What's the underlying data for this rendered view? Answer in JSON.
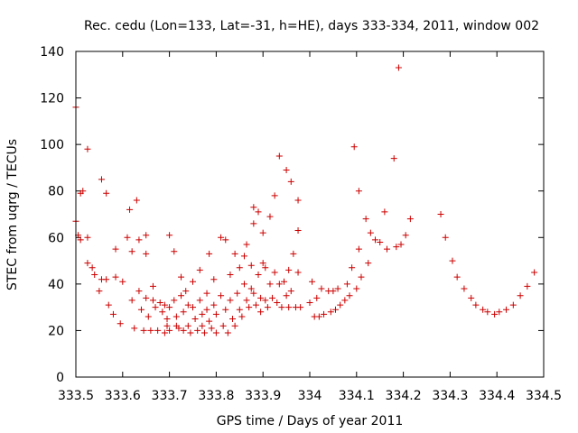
{
  "chart_data": {
    "type": "scatter",
    "title": "Rec. cedu (Lon=133, Lat=-31, h=HE), days 333-334, 2011, window 002",
    "xlabel": "GPS time / Days of year 2011",
    "ylabel": "STEC from uqrg / TECUs",
    "xlim": [
      333.5,
      334.5
    ],
    "ylim": [
      0,
      140
    ],
    "x_ticks": [
      333.5,
      333.6,
      333.7,
      333.8,
      333.9,
      334,
      334.1,
      334.2,
      334.3,
      334.4,
      334.5
    ],
    "x_tick_labels": [
      "333.5",
      "333.6",
      "333.7",
      "333.8",
      "333.9",
      "334",
      "334.1",
      "334.2",
      "334.3",
      "334.4",
      "334.5"
    ],
    "y_ticks": [
      0,
      20,
      40,
      60,
      80,
      100,
      120,
      140
    ],
    "y_tick_labels": [
      "0",
      "20",
      "40",
      "60",
      "80",
      "100",
      "120",
      "140"
    ],
    "grid": false,
    "legend": "none",
    "marker": "+",
    "color": "#cc0000",
    "points": [
      [
        333.5,
        116
      ],
      [
        333.5,
        67
      ],
      [
        333.505,
        61
      ],
      [
        333.51,
        79
      ],
      [
        333.515,
        80
      ],
      [
        333.51,
        59
      ],
      [
        333.525,
        60
      ],
      [
        333.525,
        98
      ],
      [
        333.525,
        49
      ],
      [
        333.535,
        47
      ],
      [
        333.54,
        44
      ],
      [
        333.55,
        37
      ],
      [
        333.555,
        85
      ],
      [
        333.555,
        42
      ],
      [
        333.565,
        79
      ],
      [
        333.565,
        42
      ],
      [
        333.57,
        31
      ],
      [
        333.58,
        27
      ],
      [
        333.585,
        55
      ],
      [
        333.585,
        43
      ],
      [
        333.595,
        23
      ],
      [
        333.6,
        41
      ],
      [
        333.61,
        60
      ],
      [
        333.615,
        72
      ],
      [
        333.62,
        54
      ],
      [
        333.62,
        33
      ],
      [
        333.625,
        21
      ],
      [
        333.63,
        76
      ],
      [
        333.635,
        59
      ],
      [
        333.635,
        37
      ],
      [
        333.64,
        29
      ],
      [
        333.645,
        20
      ],
      [
        333.65,
        61
      ],
      [
        333.65,
        53
      ],
      [
        333.65,
        34
      ],
      [
        333.655,
        26
      ],
      [
        333.66,
        20
      ],
      [
        333.665,
        39
      ],
      [
        333.665,
        33
      ],
      [
        333.67,
        30
      ],
      [
        333.675,
        20
      ],
      [
        333.68,
        32
      ],
      [
        333.685,
        28
      ],
      [
        333.69,
        19
      ],
      [
        333.69,
        31
      ],
      [
        333.695,
        25
      ],
      [
        333.695,
        22
      ],
      [
        333.7,
        61
      ],
      [
        333.7,
        30
      ],
      [
        333.7,
        20
      ],
      [
        333.71,
        54
      ],
      [
        333.71,
        33
      ],
      [
        333.715,
        26
      ],
      [
        333.715,
        22
      ],
      [
        333.72,
        21
      ],
      [
        333.725,
        43
      ],
      [
        333.725,
        35
      ],
      [
        333.73,
        28
      ],
      [
        333.73,
        20
      ],
      [
        333.735,
        37
      ],
      [
        333.74,
        31
      ],
      [
        333.74,
        22
      ],
      [
        333.745,
        19
      ],
      [
        333.75,
        41
      ],
      [
        333.75,
        30
      ],
      [
        333.755,
        25
      ],
      [
        333.76,
        20
      ],
      [
        333.765,
        46
      ],
      [
        333.765,
        33
      ],
      [
        333.77,
        27
      ],
      [
        333.77,
        22
      ],
      [
        333.775,
        19
      ],
      [
        333.78,
        36
      ],
      [
        333.78,
        29
      ],
      [
        333.785,
        53
      ],
      [
        333.785,
        24
      ],
      [
        333.79,
        21
      ],
      [
        333.795,
        42
      ],
      [
        333.795,
        31
      ],
      [
        333.8,
        19
      ],
      [
        333.8,
        27
      ],
      [
        333.81,
        60
      ],
      [
        333.81,
        35
      ],
      [
        333.815,
        22
      ],
      [
        333.82,
        59
      ],
      [
        333.82,
        29
      ],
      [
        333.825,
        19
      ],
      [
        333.83,
        44
      ],
      [
        333.83,
        33
      ],
      [
        333.835,
        25
      ],
      [
        333.84,
        53
      ],
      [
        333.84,
        22
      ],
      [
        333.845,
        36
      ],
      [
        333.85,
        47
      ],
      [
        333.85,
        29
      ],
      [
        333.855,
        26
      ],
      [
        333.86,
        52
      ],
      [
        333.86,
        40
      ],
      [
        333.865,
        57
      ],
      [
        333.865,
        33
      ],
      [
        333.87,
        30
      ],
      [
        333.875,
        48
      ],
      [
        333.875,
        38
      ],
      [
        333.88,
        73
      ],
      [
        333.88,
        66
      ],
      [
        333.88,
        36
      ],
      [
        333.885,
        31
      ],
      [
        333.89,
        71
      ],
      [
        333.89,
        44
      ],
      [
        333.895,
        34
      ],
      [
        333.895,
        28
      ],
      [
        333.9,
        62
      ],
      [
        333.9,
        49
      ],
      [
        333.905,
        47
      ],
      [
        333.905,
        33
      ],
      [
        333.91,
        30
      ],
      [
        333.915,
        69
      ],
      [
        333.915,
        40
      ],
      [
        333.92,
        34
      ],
      [
        333.925,
        78
      ],
      [
        333.925,
        45
      ],
      [
        333.93,
        32
      ],
      [
        333.935,
        95
      ],
      [
        333.935,
        40
      ],
      [
        333.94,
        30
      ],
      [
        333.945,
        41
      ],
      [
        333.95,
        89
      ],
      [
        333.95,
        35
      ],
      [
        333.955,
        46
      ],
      [
        333.955,
        30
      ],
      [
        333.96,
        84
      ],
      [
        333.96,
        37
      ],
      [
        333.965,
        53
      ],
      [
        333.97,
        30
      ],
      [
        333.975,
        76
      ],
      [
        333.975,
        63
      ],
      [
        333.975,
        45
      ],
      [
        333.98,
        30
      ],
      [
        334.0,
        32
      ],
      [
        334.005,
        41
      ],
      [
        334.01,
        26
      ],
      [
        334.015,
        34
      ],
      [
        334.02,
        26
      ],
      [
        334.025,
        38
      ],
      [
        334.03,
        27
      ],
      [
        334.04,
        37
      ],
      [
        334.045,
        28
      ],
      [
        334.05,
        37
      ],
      [
        334.055,
        29
      ],
      [
        334.06,
        38
      ],
      [
        334.065,
        31
      ],
      [
        334.075,
        33
      ],
      [
        334.08,
        40
      ],
      [
        334.085,
        35
      ],
      [
        334.09,
        47
      ],
      [
        334.095,
        99
      ],
      [
        334.1,
        38
      ],
      [
        334.105,
        80
      ],
      [
        334.105,
        55
      ],
      [
        334.11,
        43
      ],
      [
        334.12,
        68
      ],
      [
        334.125,
        49
      ],
      [
        334.13,
        62
      ],
      [
        334.14,
        59
      ],
      [
        334.15,
        58
      ],
      [
        334.16,
        71
      ],
      [
        334.165,
        55
      ],
      [
        334.18,
        94
      ],
      [
        334.185,
        56
      ],
      [
        334.19,
        133
      ],
      [
        334.195,
        57
      ],
      [
        334.205,
        61
      ],
      [
        334.215,
        68
      ],
      [
        334.28,
        70
      ],
      [
        334.29,
        60
      ],
      [
        334.305,
        50
      ],
      [
        334.315,
        43
      ],
      [
        334.33,
        38
      ],
      [
        334.345,
        34
      ],
      [
        334.355,
        31
      ],
      [
        334.37,
        29
      ],
      [
        334.38,
        28
      ],
      [
        334.395,
        27
      ],
      [
        334.405,
        28
      ],
      [
        334.42,
        29
      ],
      [
        334.435,
        31
      ],
      [
        334.45,
        35
      ],
      [
        334.465,
        39
      ],
      [
        334.48,
        45
      ]
    ]
  }
}
